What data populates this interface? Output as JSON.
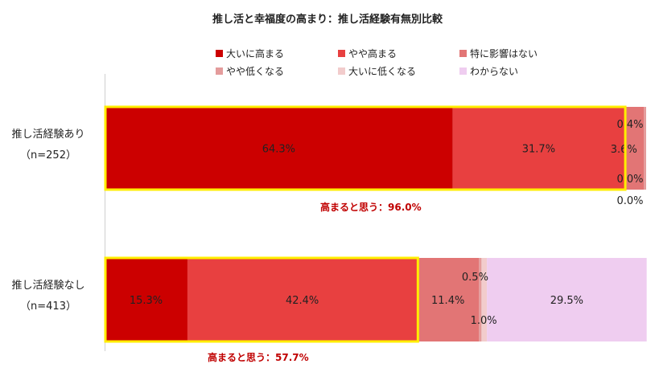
{
  "chart_data": {
    "type": "bar",
    "orientation": "horizontal-stacked-100",
    "title": "推し活と幸福度の高まり：推し活経験有無別比較",
    "legend": [
      "大いに高まる",
      "やや高まる",
      "特に影響はない",
      "やや低くなる",
      "大いに低くなる",
      "わからない"
    ],
    "legend_position": "top",
    "colors": [
      "#cc0000",
      "#e84040",
      "#e27575",
      "#e49c9c",
      "#f2cccc",
      "#efcdf0"
    ],
    "categories": [
      {
        "name": "推し活経験あり",
        "n": "（n=252）"
      },
      {
        "name": "推し活経験なし",
        "n": "（n=413）"
      }
    ],
    "series_values": [
      [
        64.3,
        31.7,
        3.6,
        0.4,
        0.0,
        0.0
      ],
      [
        15.3,
        42.4,
        11.4,
        0.5,
        1.0,
        29.5
      ]
    ],
    "value_labels": [
      [
        "64.3%",
        "31.7%",
        "3.6%",
        "0.4%",
        "0.0%",
        "0.0%"
      ],
      [
        "15.3%",
        "42.4%",
        "11.4%",
        "0.5%",
        "1.0%",
        "29.5%"
      ]
    ],
    "annotations": [
      "高まると思う：96.0%",
      "高まると思う：57.7%"
    ],
    "xlim": [
      0,
      100
    ]
  }
}
